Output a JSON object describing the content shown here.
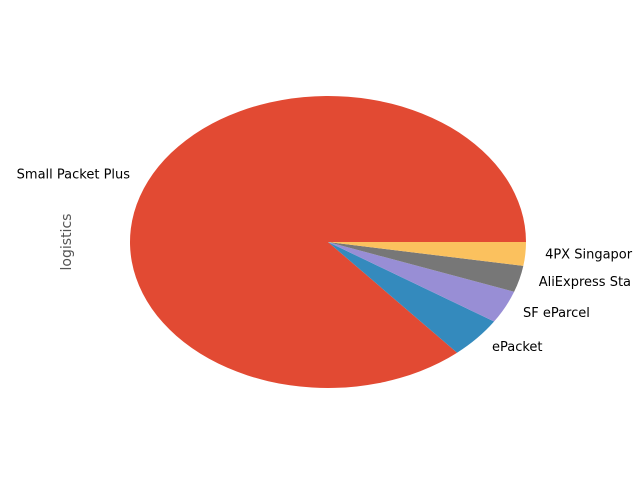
{
  "chart_data": {
    "type": "pie",
    "ylabel": "logistics",
    "categories": [
      "Small Packet Plus",
      "ePacket",
      "SF eParcel",
      "AliExpress Sta",
      "4PX Singapor"
    ],
    "values": [
      85.7,
      4.5,
      3.6,
      2.9,
      2.6
    ],
    "colors": [
      "#E24A33",
      "#348ABD",
      "#988ED5",
      "#777777",
      "#FBC15E"
    ],
    "start_angle_deg": 0,
    "direction": "counterclockwise",
    "legend": "none"
  }
}
